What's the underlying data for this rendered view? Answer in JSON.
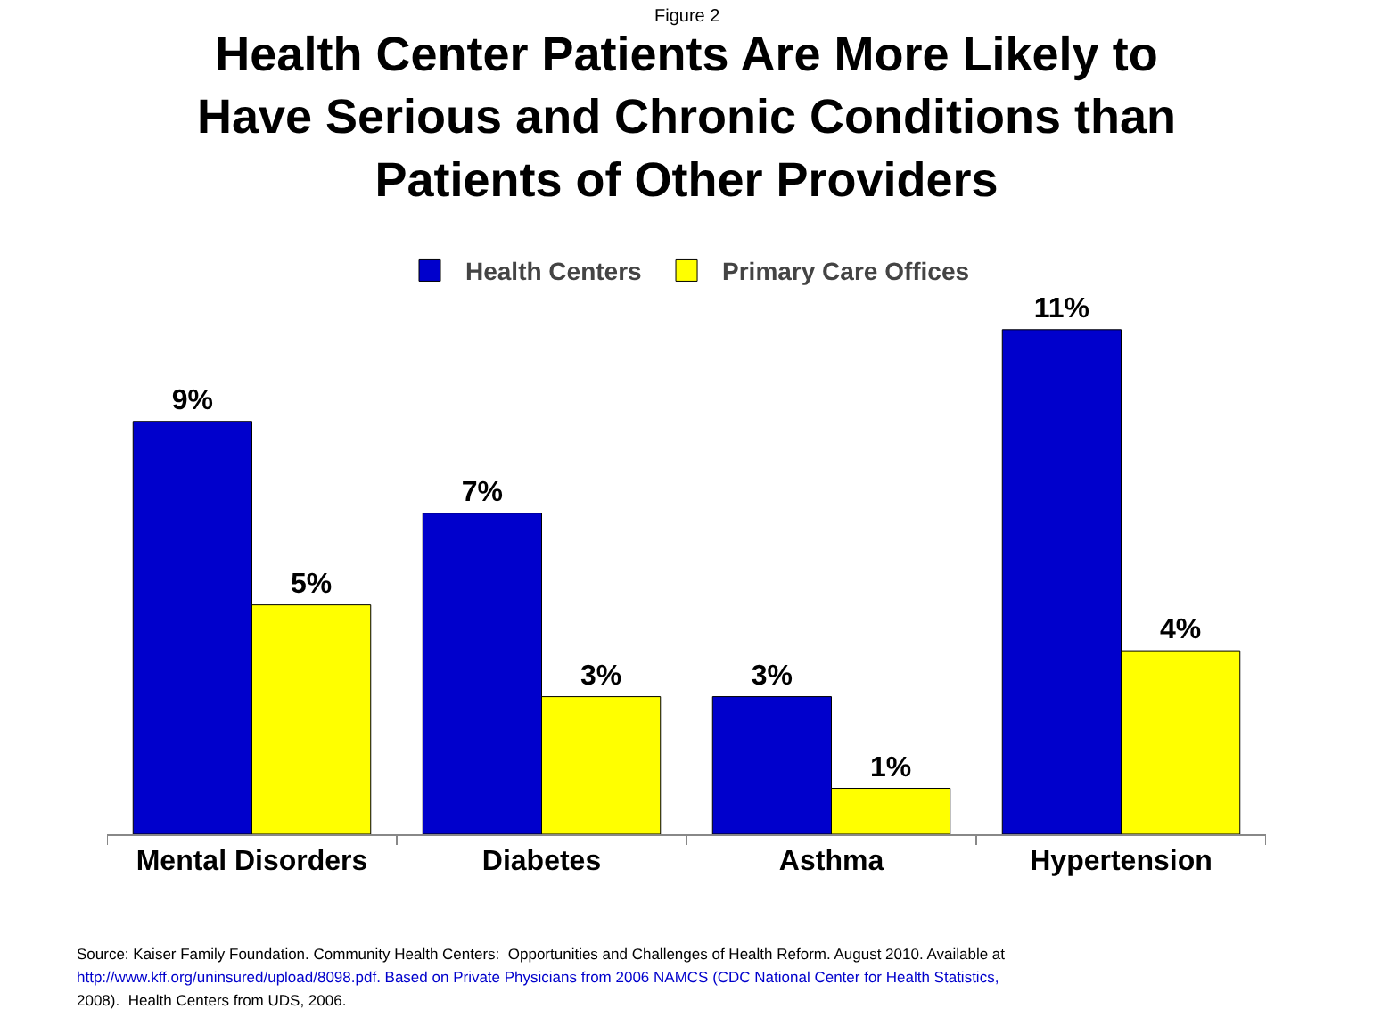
{
  "chart_data": {
    "type": "bar",
    "subtitle": "Figure 2",
    "title": "Health Center Patients Are More Likely to\nHave Serious and Chronic Conditions than\nPatients of Other Providers",
    "categories": [
      "Mental Disorders",
      "Diabetes",
      "Asthma",
      "Hypertension"
    ],
    "series": [
      {
        "name": "Health Centers",
        "color": "#0000cc",
        "values": [
          9,
          7,
          3,
          11
        ],
        "value_labels": [
          "9%",
          "7%",
          "3%",
          "11%"
        ]
      },
      {
        "name": "Primary Care Offices",
        "color": "#ffff00",
        "values": [
          5,
          3,
          1,
          4
        ],
        "value_labels": [
          "5%",
          "3%",
          "1%",
          "4%"
        ]
      }
    ],
    "legend": "top",
    "annotations": [
      "Source: Kaiser Family Foundation. Community Health Centers:  Opportunities and Challenges of Health Reform. August 2010. Available at",
      "http://www.kff.org/uninsured/upload/8098.pdf. Based on Private Physicians from 2006 NAMCS (CDC National Center for Health Statistics,",
      "2008).  Health Centers from UDS, 2006."
    ]
  }
}
